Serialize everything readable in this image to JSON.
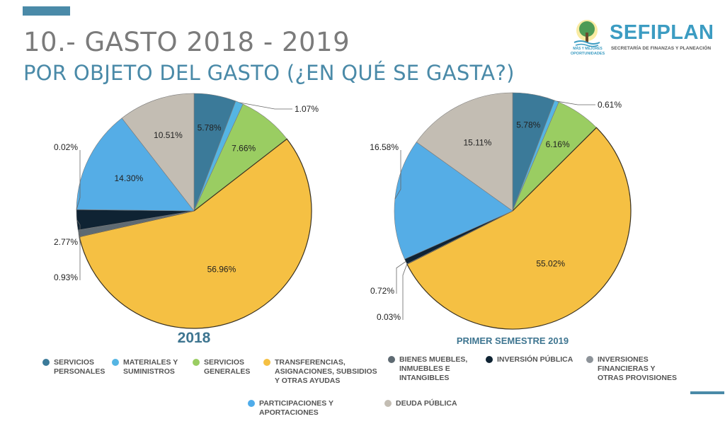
{
  "header": {
    "title": "10.- GASTO 2018 - 2019",
    "subtitle": "POR OBJETO DEL GASTO (¿EN QUÉ SE GASTA?)",
    "accent_color": "#4a8aa8"
  },
  "logo": {
    "name": "SEFIPLAN",
    "full_name": "SECRETARÍA DE FINANZAS Y PLANEACIÓN",
    "tagline_1": "MÁS Y MEJORES",
    "tagline_2": "OPORTUNIDADES"
  },
  "legend": [
    {
      "label": "SERVICIOS\nPERSONALES",
      "color": "#3b7a99"
    },
    {
      "label": "MATERIALES Y\nSUMINISTROS",
      "color": "#55b5e3"
    },
    {
      "label": "SERVICIOS\nGENERALES",
      "color": "#9acd62"
    },
    {
      "label": "TRANSFERENCIAS,\nASIGNACIONES, SUBSIDIOS\nY OTRAS AYUDAS",
      "color": "#f5c043"
    },
    {
      "label": "BIENES MUEBLES,\nINMUEBLES E\nINTANGIBLES",
      "color": "#5e6a72"
    },
    {
      "label": "INVERSIÓN PÚBLICA",
      "color": "#0f2333"
    },
    {
      "label": "INVERSIONES\nFINANCIERAS Y\nOTRAS PROVISIONES",
      "color": "#8d9399"
    },
    {
      "label": "PARTICIPACIONES Y\nAPORTACIONES",
      "color": "#4facea"
    },
    {
      "label": "DEUDA PÚBLICA",
      "color": "#c3bdb3"
    }
  ],
  "chart_data": [
    {
      "type": "pie",
      "title": "2018",
      "categories": [
        "Servicios personales",
        "Materiales y suministros",
        "Servicios generales",
        "Transferencias, asignaciones, subsidios y otras ayudas",
        "Bienes muebles, inmuebles e intangibles",
        "Inversión pública",
        "Inversiones financieras y otras provisiones",
        "Participaciones y aportaciones",
        "Deuda pública"
      ],
      "values": [
        5.78,
        1.07,
        7.66,
        56.96,
        0.93,
        2.77,
        0.02,
        14.3,
        10.51
      ],
      "labels": [
        "5.78%",
        "1.07%",
        "7.66%",
        "56.96%",
        "0.93%",
        "2.77%",
        "0.02%",
        "14.30%",
        "10.51%"
      ],
      "colors": [
        "#3b7a99",
        "#55b5e3",
        "#9acd62",
        "#f5c043",
        "#5e6a72",
        "#0f2333",
        "#8d9399",
        "#55ade6",
        "#c3bdb3"
      ],
      "start": "top",
      "direction": "clockwise"
    },
    {
      "type": "pie",
      "title": "PRIMER SEMESTRE 2019",
      "categories": [
        "Servicios personales",
        "Materiales y suministros",
        "Servicios generales",
        "Transferencias, asignaciones, subsidios y otras ayudas",
        "Bienes muebles, inmuebles e intangibles",
        "Inversión pública",
        "Inversiones financieras y otras provisiones",
        "Participaciones y aportaciones",
        "Deuda pública"
      ],
      "values": [
        5.78,
        0.61,
        6.16,
        55.02,
        0.03,
        0.72,
        0,
        16.58,
        15.11
      ],
      "labels": [
        "5.78%",
        "0.61%",
        "6.16%",
        "55.02%",
        "0.03%",
        "0.72%",
        "",
        "16.58%",
        "15.11%"
      ],
      "colors": [
        "#3b7a99",
        "#55b5e3",
        "#9acd62",
        "#f5c043",
        "#5e6a72",
        "#0f2333",
        "#8d9399",
        "#55ade6",
        "#c3bdb3"
      ],
      "start": "top",
      "direction": "clockwise"
    }
  ]
}
